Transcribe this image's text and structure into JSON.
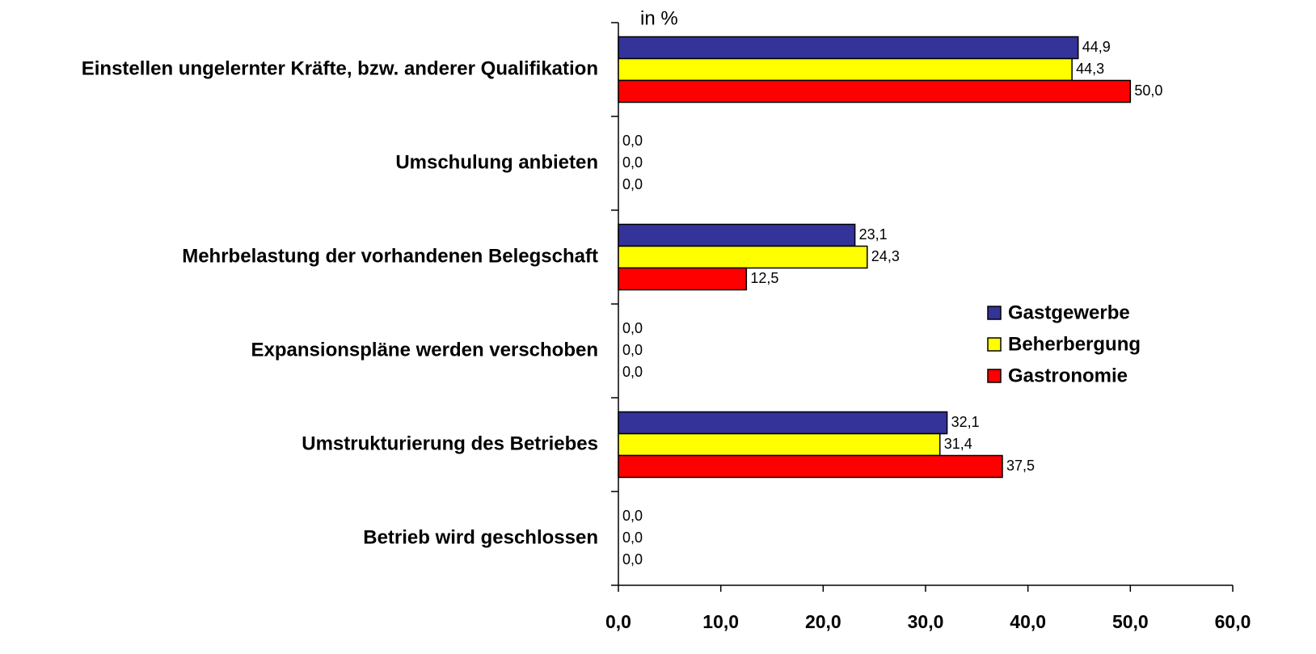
{
  "chart_data": {
    "type": "hbar",
    "axis_label": "in %",
    "categories": [
      "Einstellen ungelernter Kräfte, bzw. anderer Qualifikation",
      "Umschulung anbieten",
      "Mehrbelastung der vorhandenen Belegschaft",
      "Expansionspläne werden verschoben",
      "Umstrukturierung des Betriebes",
      "Betrieb wird geschlossen"
    ],
    "series": [
      {
        "name": "Gastgewerbe",
        "color": "#333399",
        "values": [
          44.9,
          0,
          23.1,
          0,
          32.1,
          0
        ],
        "value_labels": [
          "44,9",
          "0,0",
          "23,1",
          "0,0",
          "32,1",
          "0,0"
        ]
      },
      {
        "name": "Beherbergung",
        "color": "#ffff00",
        "values": [
          44.3,
          0,
          24.3,
          0,
          31.4,
          0
        ],
        "value_labels": [
          "44,3",
          "0,0",
          "24,3",
          "0,0",
          "31,4",
          "0,0"
        ]
      },
      {
        "name": "Gastronomie",
        "color": "#ff0000",
        "values": [
          50.0,
          0,
          12.5,
          0,
          37.5,
          0
        ],
        "value_labels": [
          "50,0",
          "0,0",
          "12,5",
          "0,0",
          "37,5",
          "0,0"
        ]
      }
    ],
    "xlim": [
      0,
      60
    ],
    "xticks": [
      {
        "value": 0,
        "label": "0,0"
      },
      {
        "value": 10,
        "label": "10,0"
      },
      {
        "value": 20,
        "label": "20,0"
      },
      {
        "value": 30,
        "label": "30,0"
      },
      {
        "value": 40,
        "label": "40,0"
      },
      {
        "value": 50,
        "label": "50,0"
      },
      {
        "value": 60,
        "label": "60,0"
      }
    ],
    "legend": "right"
  }
}
